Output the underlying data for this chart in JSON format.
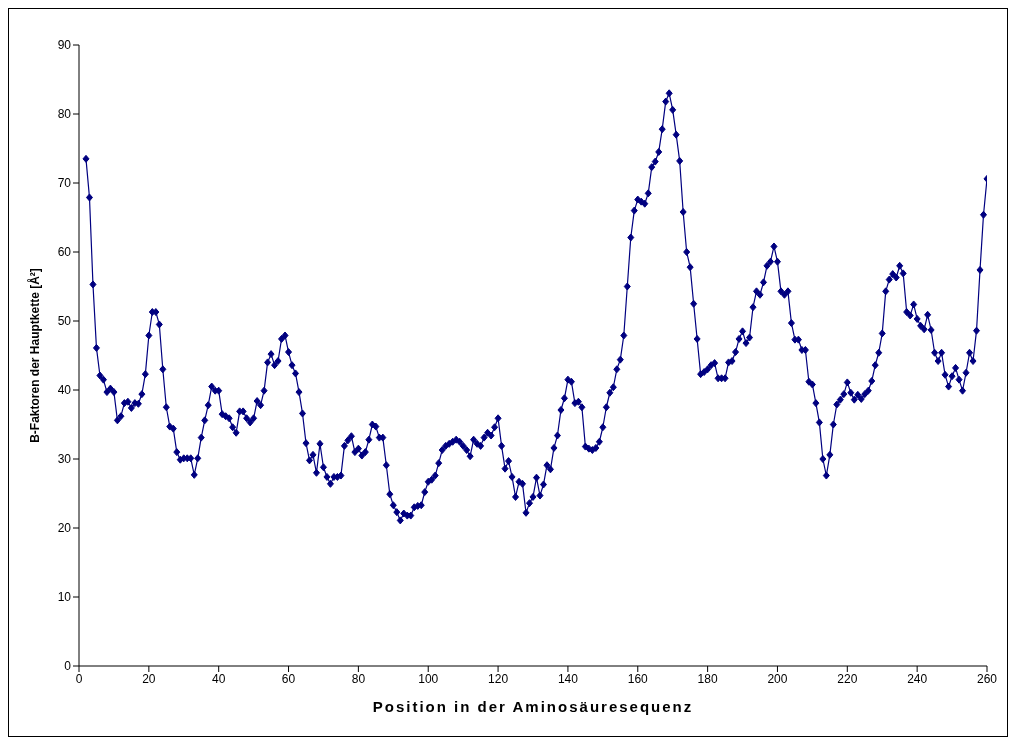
{
  "chart_data": {
    "type": "line",
    "xlabel": "Position in der Aminosäuresequenz",
    "ylabel": "B-Faktoren der Hauptkette [Å²]",
    "xlim": [
      0,
      260
    ],
    "xticks": [
      0,
      20,
      40,
      60,
      80,
      100,
      120,
      140,
      160,
      180,
      200,
      220,
      240,
      260
    ],
    "ylim": [
      0,
      90
    ],
    "yticks": [
      0,
      10,
      20,
      30,
      40,
      50,
      60,
      70,
      80,
      90
    ],
    "marker": "diamond",
    "line_style": "solid",
    "x": [
      2,
      3,
      4,
      5,
      6,
      7,
      8,
      9,
      10,
      11,
      12,
      13,
      14,
      15,
      16,
      17,
      18,
      19,
      20,
      21,
      22,
      23,
      24,
      25,
      26,
      27,
      28,
      29,
      30,
      31,
      32,
      33,
      34,
      35,
      36,
      37,
      38,
      39,
      40,
      41,
      42,
      43,
      44,
      45,
      46,
      47,
      48,
      49,
      50,
      51,
      52,
      53,
      54,
      55,
      56,
      57,
      58,
      59,
      60,
      61,
      62,
      63,
      64,
      65,
      66,
      67,
      68,
      69,
      70,
      71,
      72,
      73,
      74,
      75,
      76,
      77,
      78,
      79,
      80,
      81,
      82,
      83,
      84,
      85,
      86,
      87,
      88,
      89,
      90,
      91,
      92,
      93,
      94,
      95,
      96,
      97,
      98,
      99,
      100,
      101,
      102,
      103,
      104,
      105,
      106,
      107,
      108,
      109,
      110,
      111,
      112,
      113,
      114,
      115,
      116,
      117,
      118,
      119,
      120,
      121,
      122,
      123,
      124,
      125,
      126,
      127,
      128,
      129,
      130,
      131,
      132,
      133,
      134,
      135,
      136,
      137,
      138,
      139,
      140,
      141,
      142,
      143,
      144,
      145,
      146,
      147,
      148,
      149,
      150,
      151,
      152,
      153,
      154,
      155,
      156,
      157,
      158,
      159,
      160,
      161,
      162,
      163,
      164,
      165,
      166,
      167,
      168,
      169,
      170,
      171,
      172,
      173,
      174,
      175,
      176,
      177,
      178,
      179,
      180,
      181,
      182,
      183,
      184,
      185,
      186,
      187,
      188,
      189,
      190,
      191,
      192,
      193,
      194,
      195,
      196,
      197,
      198,
      199,
      200,
      201,
      202,
      203,
      204,
      205,
      206,
      207,
      208,
      209,
      210,
      211,
      212,
      213,
      214,
      215,
      216,
      217,
      218,
      219,
      220,
      221,
      222,
      223,
      224,
      225,
      226,
      227,
      228,
      229,
      230,
      231,
      232,
      233,
      234,
      235,
      236,
      237,
      238,
      239,
      240,
      241,
      242,
      243,
      244,
      245,
      246,
      247,
      248,
      249,
      250,
      251,
      252,
      253,
      254,
      255,
      256,
      257,
      258,
      259,
      260
    ],
    "series": [
      {
        "color": "#000080",
        "values": [
          73.5,
          67.9,
          55.3,
          46.1,
          42.1,
          41.5,
          39.7,
          40.2,
          39.7,
          35.6,
          36.2,
          38.1,
          38.3,
          37.4,
          38.1,
          38.0,
          39.4,
          42.3,
          47.9,
          51.3,
          51.3,
          49.5,
          43.0,
          37.5,
          34.7,
          34.4,
          31.0,
          29.9,
          30.1,
          30.1,
          30.1,
          27.7,
          30.1,
          33.1,
          35.6,
          37.8,
          40.5,
          39.9,
          39.9,
          36.5,
          36.2,
          35.9,
          34.6,
          33.8,
          36.9,
          36.9,
          35.9,
          35.3,
          35.9,
          38.4,
          37.8,
          39.9,
          44.0,
          45.2,
          43.6,
          44.2,
          47.4,
          47.9,
          45.5,
          43.6,
          42.4,
          39.7,
          36.6,
          32.3,
          29.8,
          30.6,
          28.0,
          32.2,
          28.8,
          27.4,
          26.4,
          27.4,
          27.4,
          27.6,
          31.9,
          32.7,
          33.3,
          31.0,
          31.5,
          30.5,
          31.0,
          32.8,
          35.0,
          34.7,
          33.1,
          33.1,
          29.1,
          24.9,
          23.3,
          22.3,
          21.1,
          22.1,
          21.8,
          21.8,
          23.0,
          23.2,
          23.3,
          25.2,
          26.7,
          27.0,
          27.6,
          29.4,
          31.3,
          31.9,
          32.2,
          32.5,
          32.8,
          32.5,
          31.9,
          31.3,
          30.4,
          32.8,
          32.2,
          31.9,
          33.1,
          33.8,
          33.4,
          34.6,
          35.9,
          31.9,
          28.6,
          29.7,
          27.4,
          24.5,
          26.7,
          26.4,
          22.2,
          23.6,
          24.5,
          27.3,
          24.7,
          26.3,
          29.1,
          28.5,
          31.6,
          33.4,
          37.1,
          38.8,
          41.5,
          41.2,
          38.1,
          38.3,
          37.5,
          31.8,
          31.5,
          31.3,
          31.6,
          32.5,
          34.6,
          37.5,
          39.6,
          40.4,
          43.0,
          44.4,
          47.9,
          55.0,
          62.1,
          66.0,
          67.6,
          67.3,
          67.0,
          68.5,
          72.3,
          73.1,
          74.5,
          77.8,
          81.8,
          83.0,
          80.6,
          77.0,
          73.2,
          65.8,
          60.0,
          57.8,
          52.5,
          47.4,
          42.3,
          42.6,
          43.0,
          43.6,
          43.9,
          41.7,
          41.7,
          41.7,
          44.0,
          44.2,
          45.5,
          47.4,
          48.5,
          46.8,
          47.6,
          52.0,
          54.3,
          53.8,
          55.6,
          58.0,
          58.6,
          60.8,
          58.6,
          54.3,
          53.8,
          54.3,
          49.7,
          47.3,
          47.3,
          45.8,
          45.8,
          41.2,
          40.8,
          38.1,
          35.3,
          30.0,
          27.6,
          30.6,
          35.0,
          37.9,
          38.6,
          39.4,
          41.1,
          39.6,
          38.6,
          39.3,
          38.7,
          39.4,
          39.9,
          41.3,
          43.6,
          45.4,
          48.2,
          54.3,
          56.0,
          56.8,
          56.3,
          58.0,
          56.9,
          51.3,
          50.8,
          52.4,
          50.3,
          49.3,
          48.8,
          50.9,
          48.7,
          45.4,
          44.2,
          45.4,
          42.2,
          40.5,
          42.0,
          43.2,
          41.5,
          39.9,
          42.5,
          45.4,
          44.2,
          48.6,
          57.4,
          65.4,
          70.6
        ]
      }
    ]
  }
}
